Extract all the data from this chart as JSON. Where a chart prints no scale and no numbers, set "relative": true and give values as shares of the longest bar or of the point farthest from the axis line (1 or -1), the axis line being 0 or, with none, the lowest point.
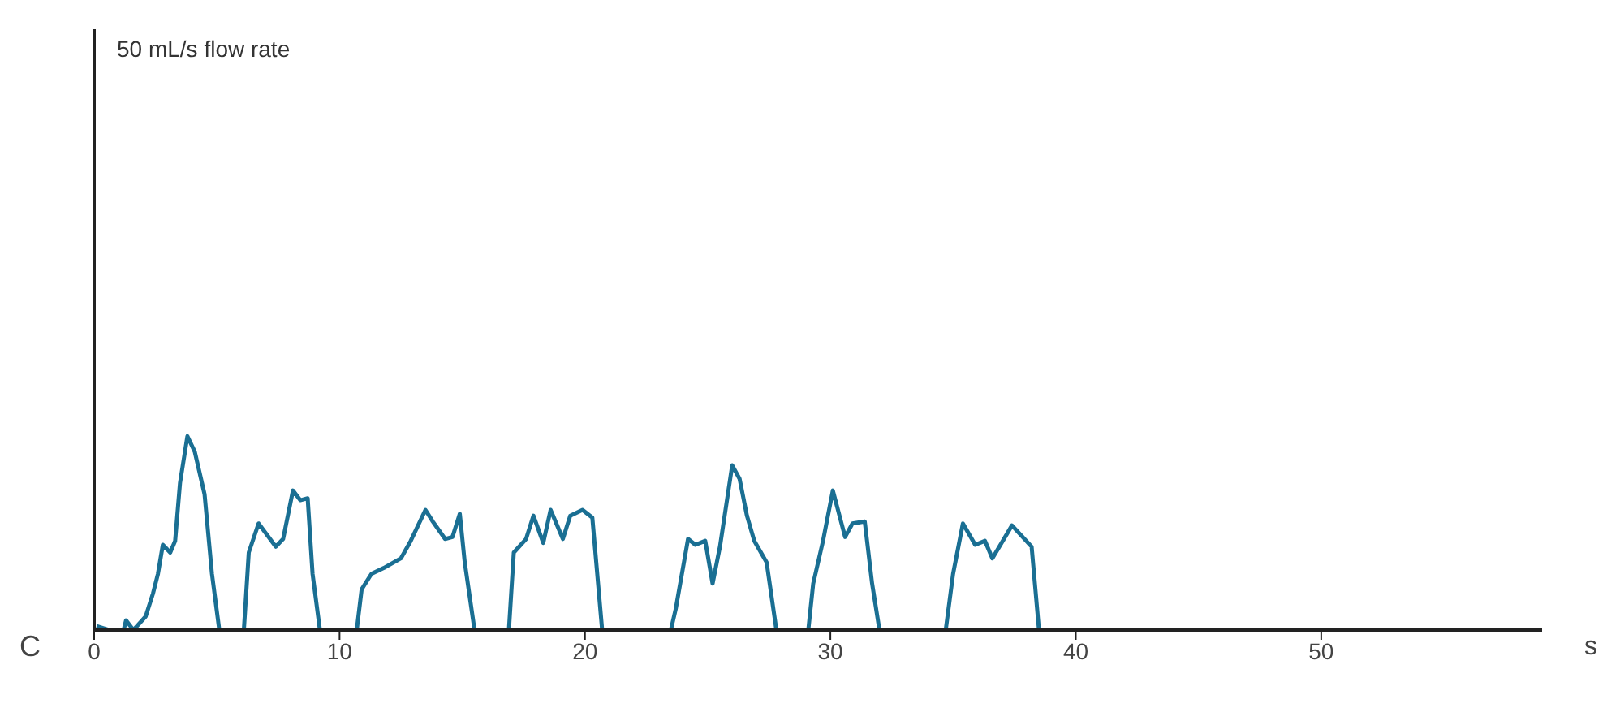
{
  "chart_data": {
    "type": "line",
    "relative": true,
    "xlabel": "s",
    "annotations": [
      "C",
      "50 mL/s flow rate"
    ],
    "x": [
      0.1,
      0.6,
      1.2,
      1.3,
      1.6,
      2.1,
      2.4,
      2.6,
      2.8,
      3.1,
      3.3,
      3.5,
      3.8,
      4.1,
      4.5,
      4.8,
      5.1,
      6.1,
      6.3,
      6.7,
      7.4,
      7.7,
      8.1,
      8.4,
      8.7,
      8.9,
      9.2,
      10.7,
      10.9,
      11.3,
      11.8,
      12.5,
      12.9,
      13.5,
      13.8,
      14.3,
      14.6,
      14.9,
      15.1,
      15.5,
      16.9,
      17.1,
      17.6,
      17.9,
      18.3,
      18.6,
      19.1,
      19.4,
      19.9,
      20.3,
      20.5,
      20.7,
      23.5,
      23.7,
      24.2,
      24.5,
      24.9,
      25.2,
      25.5,
      26.0,
      26.3,
      26.6,
      26.9,
      27.4,
      27.8,
      29.1,
      29.3,
      29.7,
      30.1,
      30.6,
      30.9,
      31.4,
      31.7,
      32.0,
      34.7,
      35.0,
      35.4,
      35.9,
      36.3,
      36.6,
      37.4,
      38.2,
      38.5,
      58.9
    ],
    "values": [
      0.02,
      0,
      0,
      0.05,
      0,
      0.07,
      0.19,
      0.29,
      0.44,
      0.4,
      0.46,
      0.76,
      1.0,
      0.92,
      0.7,
      0.29,
      0,
      0,
      0.4,
      0.55,
      0.43,
      0.47,
      0.72,
      0.67,
      0.68,
      0.29,
      0,
      0,
      0.21,
      0.29,
      0.32,
      0.37,
      0.46,
      0.62,
      0.56,
      0.47,
      0.48,
      0.6,
      0.35,
      0,
      0,
      0.4,
      0.47,
      0.59,
      0.45,
      0.62,
      0.47,
      0.59,
      0.62,
      0.58,
      0.29,
      0,
      0,
      0.11,
      0.47,
      0.44,
      0.46,
      0.24,
      0.43,
      0.85,
      0.78,
      0.59,
      0.46,
      0.35,
      0,
      0,
      0.24,
      0.46,
      0.72,
      0.48,
      0.55,
      0.56,
      0.24,
      0,
      0,
      0.29,
      0.55,
      0.44,
      0.46,
      0.37,
      0.54,
      0.43,
      0,
      0
    ],
    "color": "#1a6f93",
    "xlim": [
      0,
      59
    ],
    "xticks": [
      0,
      10,
      20,
      30,
      40,
      50
    ],
    "grid": false,
    "marker": "none",
    "line_style": "solid"
  }
}
